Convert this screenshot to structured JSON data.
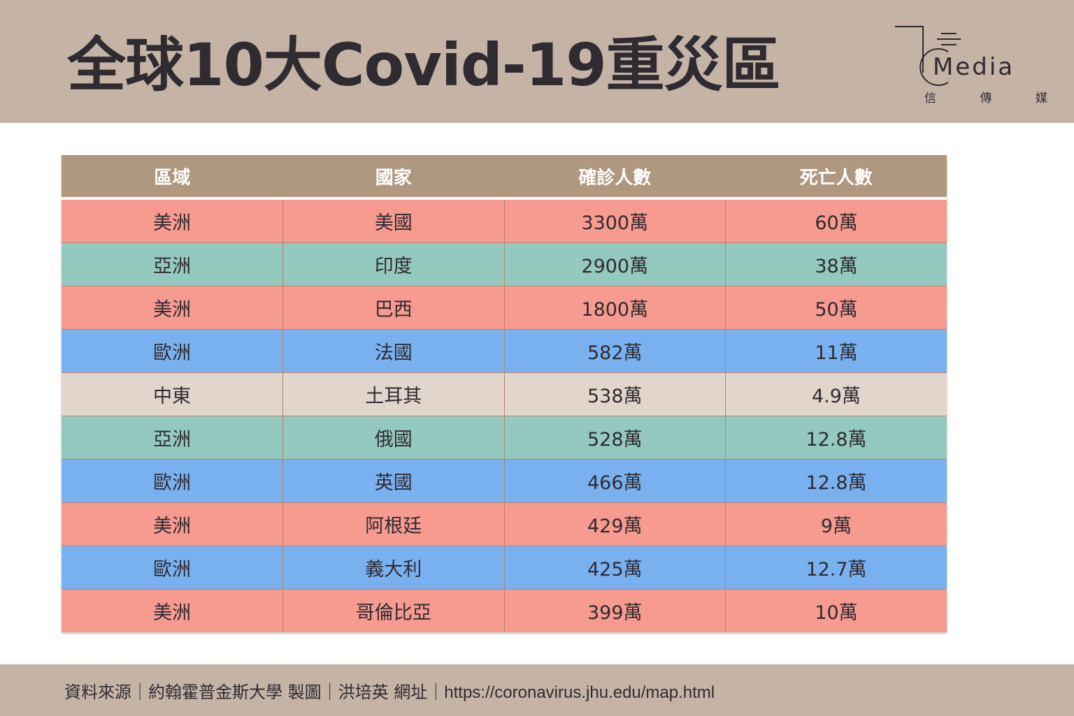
{
  "header": {
    "title": "全球10大Covid-19重災區",
    "logo": {
      "word": "Media",
      "sub": [
        "信",
        "傳",
        "媒"
      ]
    }
  },
  "table": {
    "headers": [
      "區域",
      "國家",
      "確診人數",
      "死亡人數"
    ],
    "rows": [
      {
        "region": "美洲",
        "country": "美國",
        "cases": "3300萬",
        "deaths": "60萬",
        "color": "#f79a8f"
      },
      {
        "region": "亞洲",
        "country": "印度",
        "cases": "2900萬",
        "deaths": "38萬",
        "color": "#94c9bf"
      },
      {
        "region": "美洲",
        "country": "巴西",
        "cases": "1800萬",
        "deaths": "50萬",
        "color": "#f79a8f"
      },
      {
        "region": "歐洲",
        "country": "法國",
        "cases": "582萬",
        "deaths": "11萬",
        "color": "#79b1f0"
      },
      {
        "region": "中東",
        "country": "土耳其",
        "cases": "538萬",
        "deaths": "4.9萬",
        "color": "#e2d6cc"
      },
      {
        "region": "亞洲",
        "country": "俄國",
        "cases": "528萬",
        "deaths": "12.8萬",
        "color": "#94c9bf"
      },
      {
        "region": "歐洲",
        "country": "英國",
        "cases": "466萬",
        "deaths": "12.8萬",
        "color": "#79b1f0"
      },
      {
        "region": "美洲",
        "country": "阿根廷",
        "cases": "429萬",
        "deaths": "9萬",
        "color": "#f79a8f"
      },
      {
        "region": "歐洲",
        "country": "義大利",
        "cases": "425萬",
        "deaths": "12.7萬",
        "color": "#79b1f0"
      },
      {
        "region": "美洲",
        "country": "哥倫比亞",
        "cases": "399萬",
        "deaths": "10萬",
        "color": "#f79a8f"
      }
    ]
  },
  "footer": {
    "source": "資料來源｜約翰霍普金斯大學 製圖｜洪培英 網址｜",
    "url": "https://coronavirus.jhu.edu/map.html"
  },
  "colors": {
    "header_bg": "#c5b3a6",
    "table_header_bg": "#b09780",
    "americas": "#f79a8f",
    "asia": "#94c9bf",
    "europe": "#79b1f0",
    "middle_east": "#e2d6cc"
  }
}
